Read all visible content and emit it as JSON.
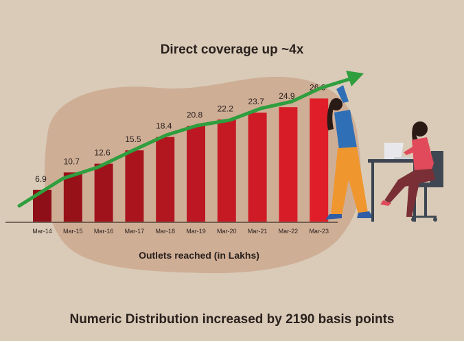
{
  "chart_data": {
    "type": "bar",
    "title": "Direct coverage up ~4x",
    "xlabel": "Outlets reached (in Lakhs)",
    "ylabel": "",
    "categories": [
      "Mar-14",
      "Mar-15",
      "Mar-16",
      "Mar-17",
      "Mar-18",
      "Mar-19",
      "Mar-20",
      "Mar-21",
      "Mar-22",
      "Mar-23"
    ],
    "values": [
      6.9,
      10.7,
      12.6,
      15.5,
      18.4,
      20.8,
      22.2,
      23.7,
      24.9,
      26.8
    ],
    "ylim": [
      0,
      30
    ],
    "grid": false,
    "legend": "none",
    "trend_arrow": true
  },
  "footer_text": "Numeric Distribution increased by 2190 basis points",
  "colors": {
    "background": "#d9cbb8",
    "blob": "#cfae96",
    "bar_dark": "#8e0f17",
    "bar_light": "#e01e2a",
    "arrow": "#2f9e3e",
    "text": "#2a211d"
  },
  "illustration": {
    "people": [
      "woman-pushing-bar-icon",
      "woman-at-laptop-icon"
    ]
  }
}
